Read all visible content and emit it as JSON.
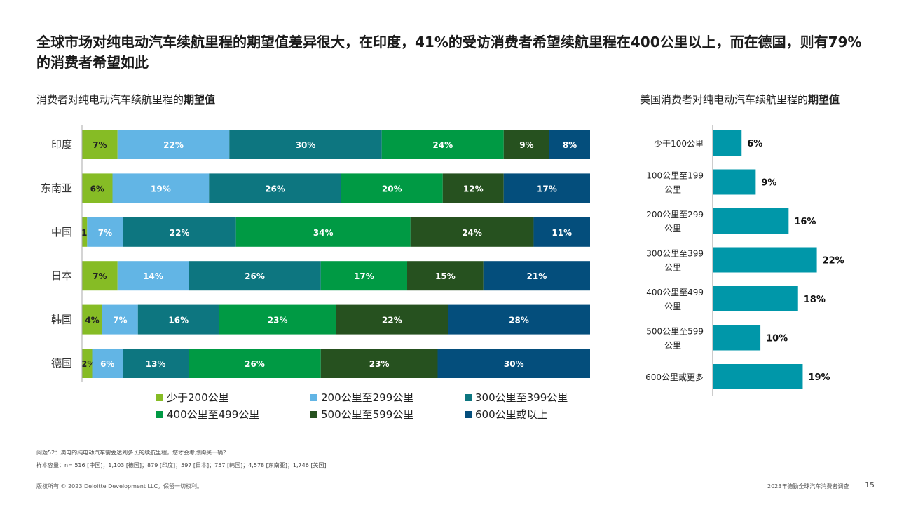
{
  "title": "全球市场对纯电动汽车续航里程的期望值差异很大，在印度，41%的受访消费者希望续航里程在400公里以上，而在德国，则有79%的消费者希望如此",
  "left_subtitle": {
    "text": "消费者对纯电动汽车续航里程的",
    "bold": "期望值"
  },
  "right_subtitle": {
    "text": "美国消费者对纯电动汽车续航里程的",
    "bold": "期望值"
  },
  "colors": {
    "range1": "#86bc25",
    "range2": "#62b5e5",
    "range3": "#0d7680",
    "range4": "#009a44",
    "range5": "#26511f",
    "range6": "#044e7c",
    "us_bar": "#0097a9"
  },
  "chart_data": [
    {
      "type": "bar",
      "orientation": "horizontal",
      "stacked": true,
      "percent": true,
      "categories": [
        "印度",
        "东南亚",
        "中国",
        "日本",
        "韩国",
        "德国"
      ],
      "series": [
        {
          "name": "少于200公里",
          "color": "#86bc25",
          "values": [
            7,
            6,
            1,
            7,
            4,
            2
          ]
        },
        {
          "name": "200公里至299公里",
          "color": "#62b5e5",
          "values": [
            22,
            19,
            7,
            14,
            7,
            6
          ]
        },
        {
          "name": "300公里至399公里",
          "color": "#0d7680",
          "values": [
            30,
            26,
            22,
            26,
            16,
            13
          ]
        },
        {
          "name": "400公里至499公里",
          "color": "#009a44",
          "values": [
            24,
            20,
            34,
            17,
            23,
            26
          ]
        },
        {
          "name": "500公里至599公里",
          "color": "#26511f",
          "values": [
            9,
            12,
            24,
            15,
            22,
            23
          ]
        },
        {
          "name": "600公里或以上",
          "color": "#044e7c",
          "values": [
            8,
            17,
            11,
            21,
            28,
            30
          ]
        }
      ],
      "xlim": [
        0,
        100
      ],
      "legend": "bottom"
    },
    {
      "type": "bar",
      "orientation": "horizontal",
      "categories": [
        "少于100公里",
        "100公里至199公里",
        "200公里至299公里",
        "300公里至399公里",
        "400公里至499公里",
        "500公里至599公里",
        "600公里或更多"
      ],
      "category_lines": [
        [
          "少于100公里"
        ],
        [
          "100公里至199",
          "公里"
        ],
        [
          "200公里至299",
          "公里"
        ],
        [
          "300公里至399",
          "公里"
        ],
        [
          "400公里至499",
          "公里"
        ],
        [
          "500公里至599",
          "公里"
        ],
        [
          "600公里或更多"
        ]
      ],
      "values": [
        6,
        9,
        16,
        22,
        18,
        10,
        19
      ],
      "xlim": [
        0,
        24
      ]
    }
  ],
  "notes": {
    "question": "问题52：满电的纯电动汽车需要达到多长的续航里程，您才会考虑购买一辆？",
    "sample": "样本容量：n= 516 [中国]；1,103 [德国]；879 [印度]；597 [日本]；757 [韩国]；4,578 [东南亚]；1,746 [美国]"
  },
  "footer": {
    "copyright": "版权所有 © 2023 Deloitte Development LLC。保留一切权利。",
    "report": "2023年德勤全球汽车消费者调查",
    "page": "15"
  }
}
